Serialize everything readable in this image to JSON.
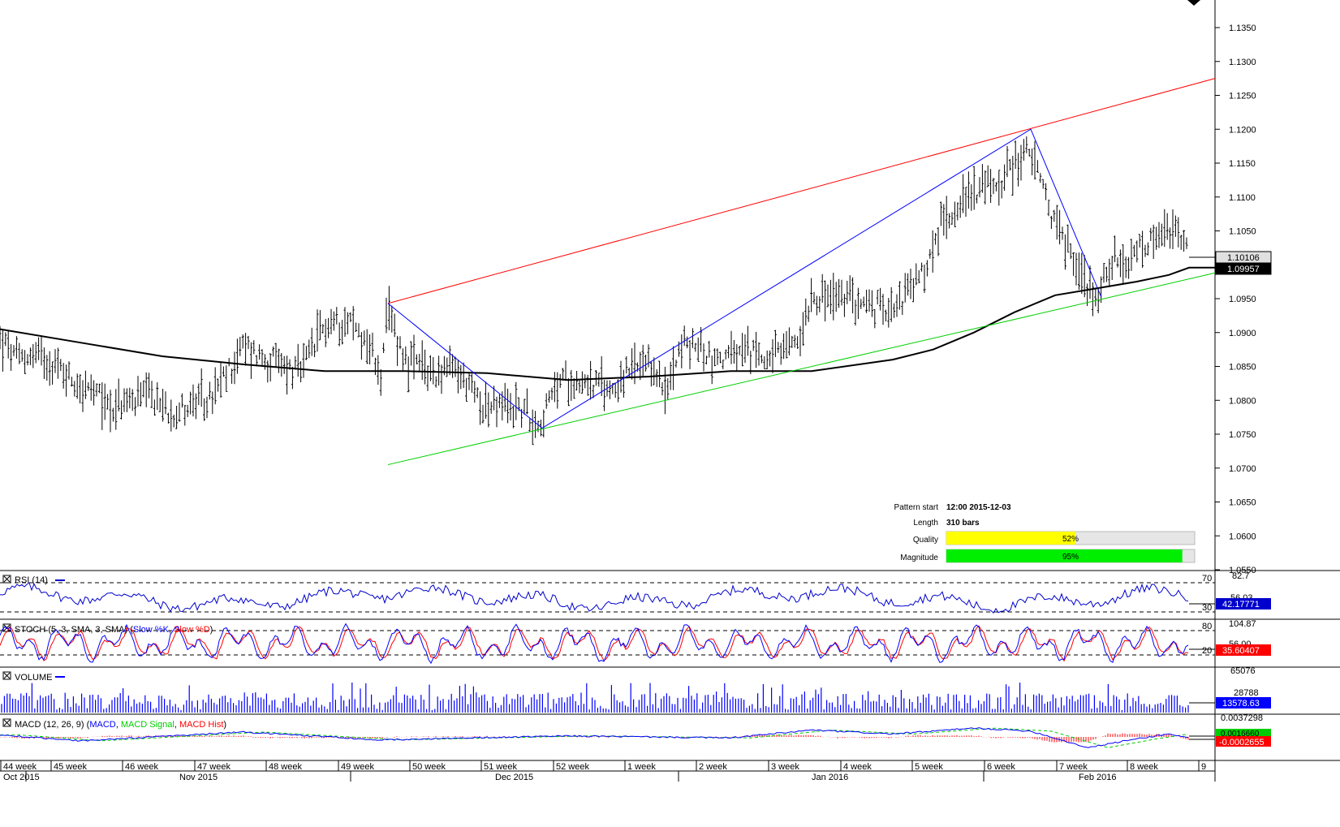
{
  "colors": {
    "pattern_upper": "#ff0000",
    "pattern_lower": "#00d000",
    "zigzag": "#0000ff",
    "moving_average": "#000000",
    "rsi": "#0000cc",
    "stoch_slow_k": "#0000ff",
    "stoch_slow_d": "#ff0000",
    "volume": "#0000ff",
    "macd": "#0000ff",
    "macd_signal": "#00cc00",
    "macd_hist": "#ff0000",
    "quality_bar": "#ffff00",
    "magnitude_bar": "#00ee00",
    "bar_background": "#e6e6e6"
  },
  "info": {
    "pattern_start_label": "Pattern start",
    "pattern_start_value": "12:00 2015-12-03",
    "length_label": "Length",
    "length_value": "310 bars",
    "quality_label": "Quality",
    "quality_value": "52%",
    "quality_fraction": 0.52,
    "magnitude_label": "Magnitude",
    "magnitude_value": "95%",
    "magnitude_fraction": 0.95
  },
  "price_labels": {
    "last": "1.10106",
    "ma": "1.09957"
  },
  "panels": {
    "rsi": {
      "title": "RSI (14)",
      "levels": [
        "70",
        "30"
      ],
      "scale_top": "82.7",
      "scale_mid": "56.03",
      "value": "42.17771"
    },
    "stoch": {
      "title_prefix": "STOCH (5, 3, SMA, 3, SMA) (",
      "k_label": "Slow %K",
      "sep": ", ",
      "d_label": "Slow %D",
      "title_suffix": ")",
      "levels": [
        "80",
        "20"
      ],
      "scale_top": "104.87",
      "scale_mid": "56.00",
      "value": "35.60407"
    },
    "volume": {
      "title": "VOLUME",
      "scale_top": "65076",
      "scale_mid": "28788",
      "value": "13578.63"
    },
    "macd": {
      "title_prefix": "MACD (12, 26, 9) (",
      "macd_label": "MACD",
      "signal_label": "MACD Signal",
      "hist_label": "MACD Hist",
      "title_suffix": ")",
      "scale_top": "0.0037298",
      "scale_mid": "0.0016660",
      "value": "-0.0002655"
    }
  },
  "chart_data": {
    "type": "candlestick",
    "symbol_timeframe": "4h",
    "y_ticks": [
      1.135,
      1.13,
      1.125,
      1.12,
      1.115,
      1.11,
      1.105,
      1.1,
      1.095,
      1.09,
      1.085,
      1.08,
      1.075,
      1.07,
      1.065,
      1.06,
      1.055
    ],
    "y_tick_labels": [
      "1.1350",
      "1.1300",
      "1.1250",
      "1.1200",
      "1.1150",
      "1.1100",
      "1.1050",
      "1.1000",
      "1.0950",
      "1.0900",
      "1.0850",
      "1.0800",
      "1.0750",
      "1.0700",
      "1.0650",
      "1.0600",
      "1.0550"
    ],
    "ylim": [
      1.0545,
      1.139
    ],
    "week_labels": [
      "44 week",
      "45 week",
      "46 week",
      "47 week",
      "48 week",
      "49 week",
      "50 week",
      "51 week",
      "52 week",
      "1 week",
      "2 week",
      "3 week",
      "4 week",
      "5 week",
      "6 week",
      "7 week",
      "8 week",
      "9"
    ],
    "month_labels": [
      "Oct 2015",
      "Nov 2015",
      "Dec 2015",
      "Jan 2016",
      "Feb 2016"
    ],
    "price_path": [
      [
        0,
        1.089
      ],
      [
        20,
        1.086
      ],
      [
        50,
        1.087
      ],
      [
        100,
        1.082
      ],
      [
        140,
        1.079
      ],
      [
        180,
        1.0805
      ],
      [
        210,
        1.0785
      ],
      [
        260,
        1.08
      ],
      [
        300,
        1.088
      ],
      [
        330,
        1.086
      ],
      [
        370,
        1.084
      ],
      [
        400,
        1.091
      ],
      [
        430,
        1.092
      ],
      [
        455,
        1.088
      ],
      [
        470,
        1.0835
      ],
      [
        478,
        1.093
      ],
      [
        500,
        1.086
      ],
      [
        530,
        1.084
      ],
      [
        560,
        1.0845
      ],
      [
        600,
        1.079
      ],
      [
        640,
        1.079
      ],
      [
        665,
        1.0765
      ],
      [
        690,
        1.083
      ],
      [
        720,
        1.083
      ],
      [
        750,
        1.0815
      ],
      [
        780,
        1.0845
      ],
      [
        810,
        1.0845
      ],
      [
        820,
        1.08
      ],
      [
        835,
        1.088
      ],
      [
        860,
        1.088
      ],
      [
        880,
        1.086
      ],
      [
        920,
        1.087
      ],
      [
        960,
        1.0865
      ],
      [
        985,
        1.089
      ],
      [
        1000,
        1.096
      ],
      [
        1020,
        1.095
      ],
      [
        1050,
        1.095
      ],
      [
        1080,
        1.0935
      ],
      [
        1110,
        1.095
      ],
      [
        1140,
        1.099
      ],
      [
        1160,
        1.106
      ],
      [
        1180,
        1.109
      ],
      [
        1200,
        1.111
      ],
      [
        1230,
        1.112
      ],
      [
        1250,
        1.115
      ],
      [
        1268,
        1.117
      ],
      [
        1285,
        1.111
      ],
      [
        1300,
        1.106
      ],
      [
        1320,
        1.102
      ],
      [
        1340,
        1.0965
      ],
      [
        1355,
        1.096
      ],
      [
        1370,
        1.101
      ],
      [
        1385,
        1.0985
      ],
      [
        1400,
        1.102
      ],
      [
        1420,
        1.103
      ],
      [
        1440,
        1.105
      ],
      [
        1455,
        1.104
      ],
      [
        1465,
        1.101
      ]
    ],
    "moving_average": [
      [
        0,
        1.0905
      ],
      [
        100,
        1.0885
      ],
      [
        200,
        1.0865
      ],
      [
        300,
        1.0853
      ],
      [
        400,
        1.0843
      ],
      [
        500,
        1.0843
      ],
      [
        600,
        1.084
      ],
      [
        700,
        1.083
      ],
      [
        800,
        1.0835
      ],
      [
        900,
        1.0843
      ],
      [
        1000,
        1.0843
      ],
      [
        1100,
        1.086
      ],
      [
        1150,
        1.0875
      ],
      [
        1200,
        1.09
      ],
      [
        1250,
        1.093
      ],
      [
        1300,
        1.0955
      ],
      [
        1350,
        1.0965
      ],
      [
        1400,
        1.0975
      ],
      [
        1440,
        1.0985
      ],
      [
        1465,
        1.09957
      ],
      [
        1497,
        1.09957
      ]
    ],
    "pattern_upper_line": [
      [
        478,
        1.0943
      ],
      [
        1497,
        1.1275
      ]
    ],
    "pattern_lower_line": [
      [
        478,
        1.0705
      ],
      [
        1497,
        1.0988
      ]
    ],
    "zigzag": [
      [
        478,
        1.0943
      ],
      [
        668,
        1.0759
      ],
      [
        1270,
        1.12
      ],
      [
        1357,
        1.0952
      ]
    ],
    "last_price": 1.10106
  }
}
